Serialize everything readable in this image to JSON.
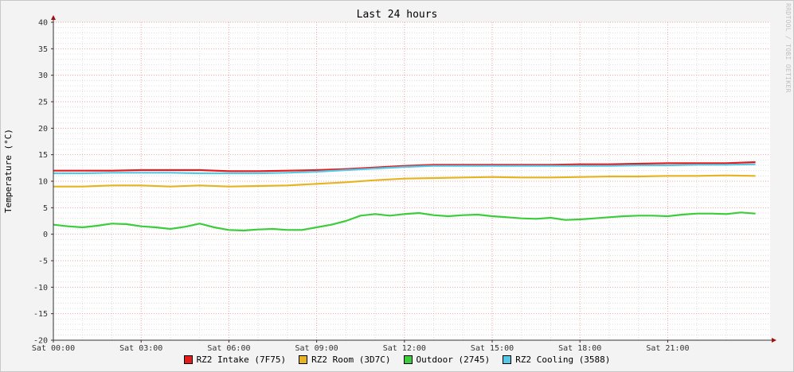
{
  "chart_data": {
    "type": "line",
    "title": "Last 24 hours",
    "watermark": "RRDTOOL / TOBI OETIKER",
    "ylabel": "Temperature (°C)",
    "ylim": [
      -20,
      40
    ],
    "yticks": [
      40,
      35,
      30,
      25,
      20,
      15,
      10,
      5,
      0,
      -5,
      -10,
      -15,
      -20
    ],
    "xlim": [
      0,
      24.5
    ],
    "xticks": [
      {
        "t": 0,
        "label": "Sat 00:00"
      },
      {
        "t": 3,
        "label": "Sat 03:00"
      },
      {
        "t": 6,
        "label": "Sat 06:00"
      },
      {
        "t": 9,
        "label": "Sat 09:00"
      },
      {
        "t": 12,
        "label": "Sat 12:00"
      },
      {
        "t": 15,
        "label": "Sat 15:00"
      },
      {
        "t": 18,
        "label": "Sat 18:00"
      },
      {
        "t": 21,
        "label": "Sat 21:00"
      }
    ],
    "x_unit": "hours",
    "grid": true,
    "legend_position": "bottom",
    "series": [
      {
        "name": "RZ2 Intake (7F75)",
        "color": "#e41a1c",
        "x": [
          0,
          1,
          2,
          3,
          4,
          5,
          6,
          7,
          8,
          9,
          10,
          11,
          12,
          13,
          14,
          15,
          16,
          17,
          18,
          19,
          20,
          21,
          22,
          23,
          24
        ],
        "y": [
          12.0,
          12.0,
          12.0,
          12.1,
          12.1,
          12.1,
          11.9,
          11.9,
          12.0,
          12.1,
          12.3,
          12.6,
          12.9,
          13.1,
          13.1,
          13.1,
          13.1,
          13.1,
          13.2,
          13.2,
          13.3,
          13.4,
          13.4,
          13.4,
          13.6
        ]
      },
      {
        "name": "RZ2 Room (3D7C)",
        "color": "#e6b422",
        "x": [
          0,
          1,
          2,
          3,
          4,
          5,
          6,
          7,
          8,
          9,
          10,
          11,
          12,
          13,
          14,
          15,
          16,
          17,
          18,
          19,
          20,
          21,
          22,
          23,
          24
        ],
        "y": [
          9.0,
          9.0,
          9.2,
          9.2,
          9.0,
          9.2,
          9.0,
          9.1,
          9.2,
          9.5,
          9.8,
          10.2,
          10.5,
          10.6,
          10.7,
          10.8,
          10.7,
          10.7,
          10.8,
          10.9,
          10.9,
          11.0,
          11.0,
          11.1,
          11.0
        ]
      },
      {
        "name": "Outdoor (2745)",
        "color": "#3ccc3c",
        "x": [
          0,
          0.5,
          1,
          1.5,
          2,
          2.5,
          3,
          3.5,
          4,
          4.5,
          5,
          5.5,
          6,
          6.5,
          7,
          7.5,
          8,
          8.5,
          9,
          9.5,
          10,
          10.5,
          11,
          11.5,
          12,
          12.5,
          13,
          13.5,
          14,
          14.5,
          15,
          15.5,
          16,
          16.5,
          17,
          17.5,
          18,
          18.5,
          19,
          19.5,
          20,
          20.5,
          21,
          21.5,
          22,
          22.5,
          23,
          23.5,
          24
        ],
        "y": [
          1.8,
          1.5,
          1.3,
          1.6,
          2.0,
          1.9,
          1.5,
          1.3,
          1.0,
          1.4,
          2.0,
          1.3,
          0.8,
          0.7,
          0.9,
          1.0,
          0.8,
          0.8,
          1.3,
          1.8,
          2.5,
          3.5,
          3.8,
          3.5,
          3.8,
          4.0,
          3.6,
          3.4,
          3.6,
          3.7,
          3.4,
          3.2,
          3.0,
          2.9,
          3.1,
          2.7,
          2.8,
          3.0,
          3.2,
          3.4,
          3.5,
          3.5,
          3.4,
          3.7,
          3.9,
          3.9,
          3.8,
          4.1,
          3.9
        ]
      },
      {
        "name": "RZ2 Cooling (3588)",
        "color": "#55c8e6",
        "x": [
          0,
          1,
          2,
          3,
          4,
          5,
          6,
          7,
          8,
          9,
          10,
          11,
          12,
          13,
          14,
          15,
          16,
          17,
          18,
          19,
          20,
          21,
          22,
          23,
          24
        ],
        "y": [
          11.5,
          11.5,
          11.6,
          11.6,
          11.6,
          11.5,
          11.5,
          11.5,
          11.6,
          11.8,
          12.1,
          12.4,
          12.7,
          12.9,
          12.9,
          12.9,
          12.9,
          12.9,
          12.9,
          12.9,
          13.0,
          13.0,
          13.1,
          13.1,
          13.2
        ]
      }
    ]
  }
}
